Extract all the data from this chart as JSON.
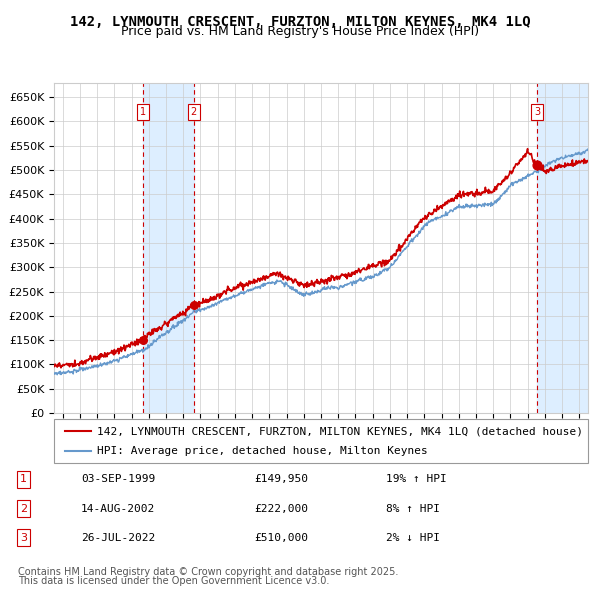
{
  "title": "142, LYNMOUTH CRESCENT, FURZTON, MILTON KEYNES, MK4 1LQ",
  "subtitle": "Price paid vs. HM Land Registry's House Price Index (HPI)",
  "legend_line1": "142, LYNMOUTH CRESCENT, FURZTON, MILTON KEYNES, MK4 1LQ (detached house)",
  "legend_line2": "HPI: Average price, detached house, Milton Keynes",
  "transactions": [
    {
      "num": 1,
      "date": "03-SEP-1999",
      "price": 149950,
      "hpi_pct": "19% ↑ HPI"
    },
    {
      "num": 2,
      "date": "14-AUG-2002",
      "price": 222000,
      "hpi_pct": "8% ↑ HPI"
    },
    {
      "num": 3,
      "date": "26-JUL-2022",
      "price": 510000,
      "hpi_pct": "2% ↓ HPI"
    }
  ],
  "transaction_dates_decimal": [
    1999.67,
    2002.62,
    2022.56
  ],
  "transaction_prices": [
    149950,
    222000,
    510000
  ],
  "footer_line1": "Contains HM Land Registry data © Crown copyright and database right 2025.",
  "footer_line2": "This data is licensed under the Open Government Licence v3.0.",
  "ylim": [
    0,
    680000
  ],
  "yticks": [
    0,
    50000,
    100000,
    150000,
    200000,
    250000,
    300000,
    350000,
    400000,
    450000,
    500000,
    550000,
    600000,
    650000
  ],
  "xlim_start": 1994.5,
  "xlim_end": 2025.5,
  "red_line_color": "#cc0000",
  "blue_line_color": "#6699cc",
  "bg_color": "#e8f0f8",
  "plot_bg_color": "#ffffff",
  "grid_color": "#cccccc",
  "shade_color": "#ddeeff",
  "dashed_line_color": "#cc0000",
  "box_color": "#cc0000",
  "title_fontsize": 10,
  "subtitle_fontsize": 9,
  "tick_fontsize": 8,
  "legend_fontsize": 8,
  "footer_fontsize": 7
}
